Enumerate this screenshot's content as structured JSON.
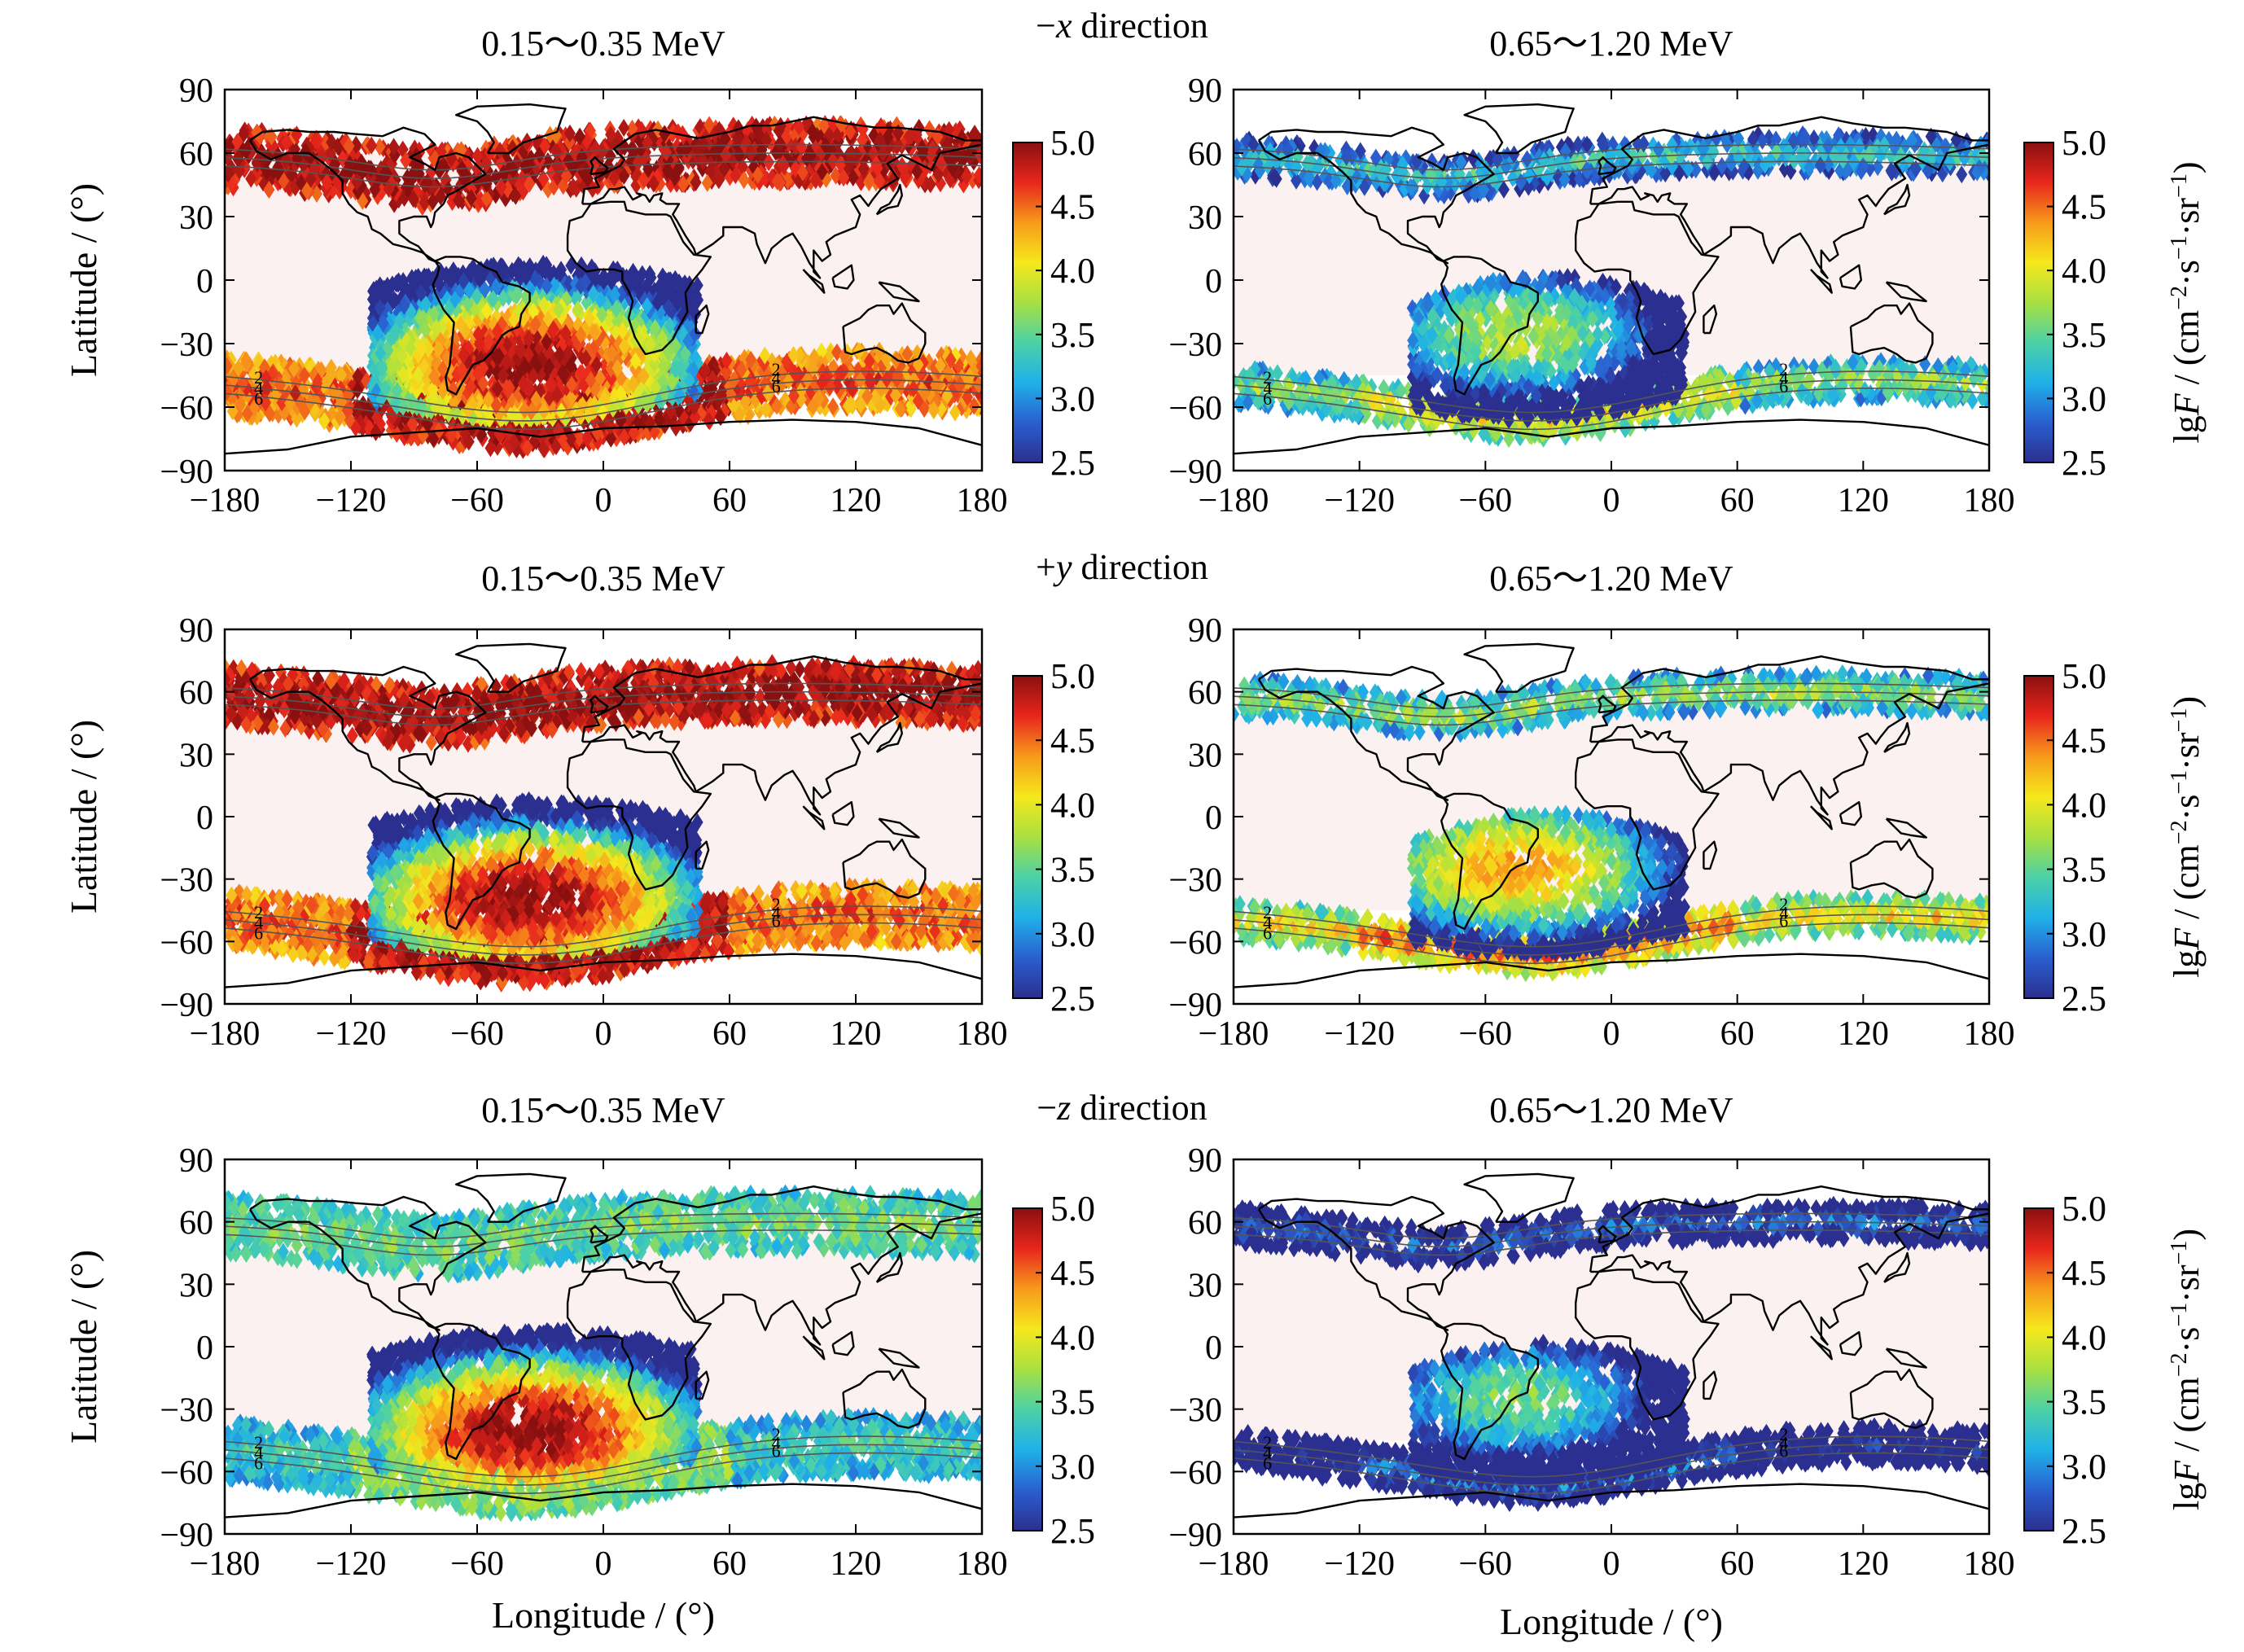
{
  "chart_data": {
    "type": "heatmap",
    "layout": "3 rows x 2 columns of world-map scatter panels, each with a colorbar",
    "row_titles": [
      {
        "sign": "−",
        "axis": "x",
        "rest": " direction"
      },
      {
        "sign": "+",
        "axis": "y",
        "rest": " direction"
      },
      {
        "sign": "−",
        "axis": "z",
        "rest": " direction"
      }
    ],
    "panel_titles": [
      "0.15～0.35 MeV",
      "0.65～1.20 MeV"
    ],
    "xlabel": "Longitude / (°)",
    "ylabel": "Latitude / (°)",
    "colorbar_label": {
      "pre": "lg",
      "var": "F",
      "post": " / (cm",
      "sup1": "−2",
      "mid": "·s",
      "sup2": "−1",
      "mid2": "·sr",
      "sup3": "−1",
      "end": ")"
    },
    "xlim": [
      -180,
      180
    ],
    "ylim": [
      -90,
      90
    ],
    "xticks": [
      -180,
      -120,
      -60,
      0,
      60,
      120,
      180
    ],
    "xtick_labels": [
      "−180",
      "−120",
      "−60",
      "0",
      "60",
      "120",
      "180"
    ],
    "yticks": [
      90,
      60,
      30,
      0,
      -30,
      -60,
      -90
    ],
    "ytick_labels": [
      "90",
      "60",
      "30",
      "0",
      "−30",
      "−60",
      "−90"
    ],
    "colorbar": {
      "range": [
        2.5,
        5.0
      ],
      "ticks": [
        5.0,
        4.5,
        4.0,
        3.5,
        3.0,
        2.5
      ],
      "tick_labels": [
        "5.0",
        "4.5",
        "4.0",
        "3.5",
        "3.0",
        "2.5"
      ],
      "colormap": [
        "#2b2f8f",
        "#2a5fd0",
        "#1fb1e8",
        "#4cd1a6",
        "#a8e040",
        "#f5e81c",
        "#f79a1b",
        "#e8261c",
        "#8a1010"
      ]
    },
    "contour_labels": [
      "2",
      "4",
      "6"
    ],
    "grid": false,
    "panels": [
      {
        "row": 0,
        "col": 0,
        "north_belt": 5.0,
        "south_belt": 5.0,
        "saa_peak": 5.0,
        "saa_extent": "large"
      },
      {
        "row": 0,
        "col": 1,
        "north_belt": 3.4,
        "south_belt": 4.2,
        "saa_peak": 3.8,
        "saa_extent": "medium"
      },
      {
        "row": 1,
        "col": 0,
        "north_belt": 5.0,
        "south_belt": 5.0,
        "saa_peak": 5.0,
        "saa_extent": "large"
      },
      {
        "row": 1,
        "col": 1,
        "north_belt": 3.8,
        "south_belt": 4.6,
        "saa_peak": 4.3,
        "saa_extent": "medium"
      },
      {
        "row": 2,
        "col": 0,
        "north_belt": 3.6,
        "south_belt": 3.8,
        "saa_peak": 5.0,
        "saa_extent": "large"
      },
      {
        "row": 2,
        "col": 1,
        "north_belt": 2.9,
        "south_belt": 3.0,
        "saa_peak": 3.6,
        "saa_extent": "medium"
      }
    ]
  }
}
